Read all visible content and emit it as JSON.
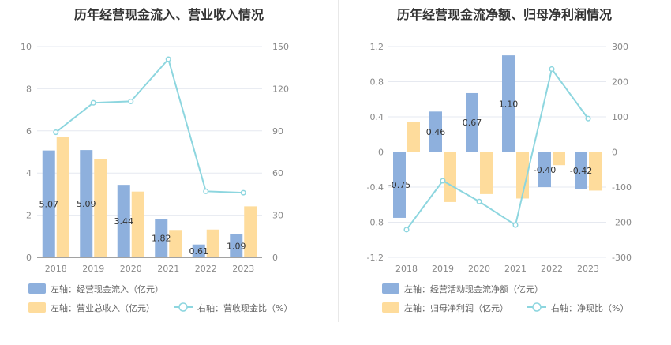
{
  "left_title": "历年经营现金流入、营业收入情况",
  "right_title": "历年经营现金流净额、归母净利润情况",
  "colors": {
    "blue": "#8eb0dd",
    "orange": "#fedc9c",
    "cyan": "#8dd6df",
    "grid": "#e6e9f0",
    "axis": "#444444",
    "tick": "#888888"
  },
  "chart_data": [
    {
      "type": "bar",
      "title": "历年经营现金流入、营业收入情况",
      "categories": [
        "2018",
        "2019",
        "2020",
        "2021",
        "2022",
        "2023"
      ],
      "left_axis": {
        "ylim": [
          0,
          10
        ],
        "ticks": [
          0,
          2,
          4,
          6,
          8,
          10
        ]
      },
      "right_axis": {
        "ylim": [
          0,
          150
        ],
        "ticks": [
          0,
          30,
          60,
          90,
          120,
          150
        ]
      },
      "series": [
        {
          "name": "左轴：经营现金流入（亿元）",
          "type": "bar",
          "axis": "left",
          "values": [
            5.07,
            5.09,
            3.44,
            1.82,
            0.61,
            1.09
          ],
          "labels": [
            "5.07",
            "5.09",
            "3.44",
            "1.82",
            "0.61",
            "1.09"
          ]
        },
        {
          "name": "左轴：营业总收入（亿元）",
          "type": "bar",
          "axis": "left",
          "values": [
            5.72,
            4.65,
            3.12,
            1.3,
            1.32,
            2.42
          ]
        },
        {
          "name": "右轴：营收现金比（%）",
          "type": "line",
          "axis": "right",
          "values": [
            89,
            110,
            111,
            141,
            47,
            46
          ]
        }
      ],
      "legend": [
        "左轴：经营现金流入（亿元）",
        "左轴：营业总收入（亿元）",
        "右轴：营收现金比（%）"
      ],
      "legend_position": "bottom",
      "grid": true
    },
    {
      "type": "bar",
      "title": "历年经营现金流净额、归母净利润情况",
      "categories": [
        "2018",
        "2019",
        "2020",
        "2021",
        "2022",
        "2023"
      ],
      "left_axis": {
        "ylim": [
          -1.2,
          1.2
        ],
        "ticks": [
          1.2,
          0.8,
          0.4,
          0,
          -0.4,
          -0.8,
          -1.2
        ],
        "tick_labels": [
          "1.2",
          "0.8",
          "0.4",
          "0",
          "-0.4",
          "-0.8",
          "-1.2"
        ]
      },
      "right_axis": {
        "ylim": [
          -300,
          300
        ],
        "ticks": [
          300,
          200,
          100,
          0,
          -100,
          -200,
          -300
        ]
      },
      "series": [
        {
          "name": "左轴：经营活动现金流净额（亿元）",
          "type": "bar",
          "axis": "left",
          "values": [
            -0.75,
            0.46,
            0.67,
            1.1,
            -0.4,
            -0.42
          ],
          "labels": [
            "-0.75",
            "0.46",
            "0.67",
            "1.10",
            "-0.40",
            "-0.42"
          ]
        },
        {
          "name": "左轴：归母净利润（亿元）",
          "type": "bar",
          "axis": "left",
          "values": [
            0.34,
            -0.57,
            -0.48,
            -0.53,
            -0.15,
            -0.44
          ]
        },
        {
          "name": "右轴：净现比（%）",
          "type": "line",
          "axis": "right",
          "values": [
            -221,
            -82,
            -141,
            -208,
            236,
            95
          ]
        }
      ],
      "legend": [
        "左轴：经营活动现金流净额（亿元）",
        "左轴：归母净利润（亿元）",
        "右轴：净现比（%）"
      ],
      "legend_position": "bottom",
      "grid": true
    }
  ]
}
